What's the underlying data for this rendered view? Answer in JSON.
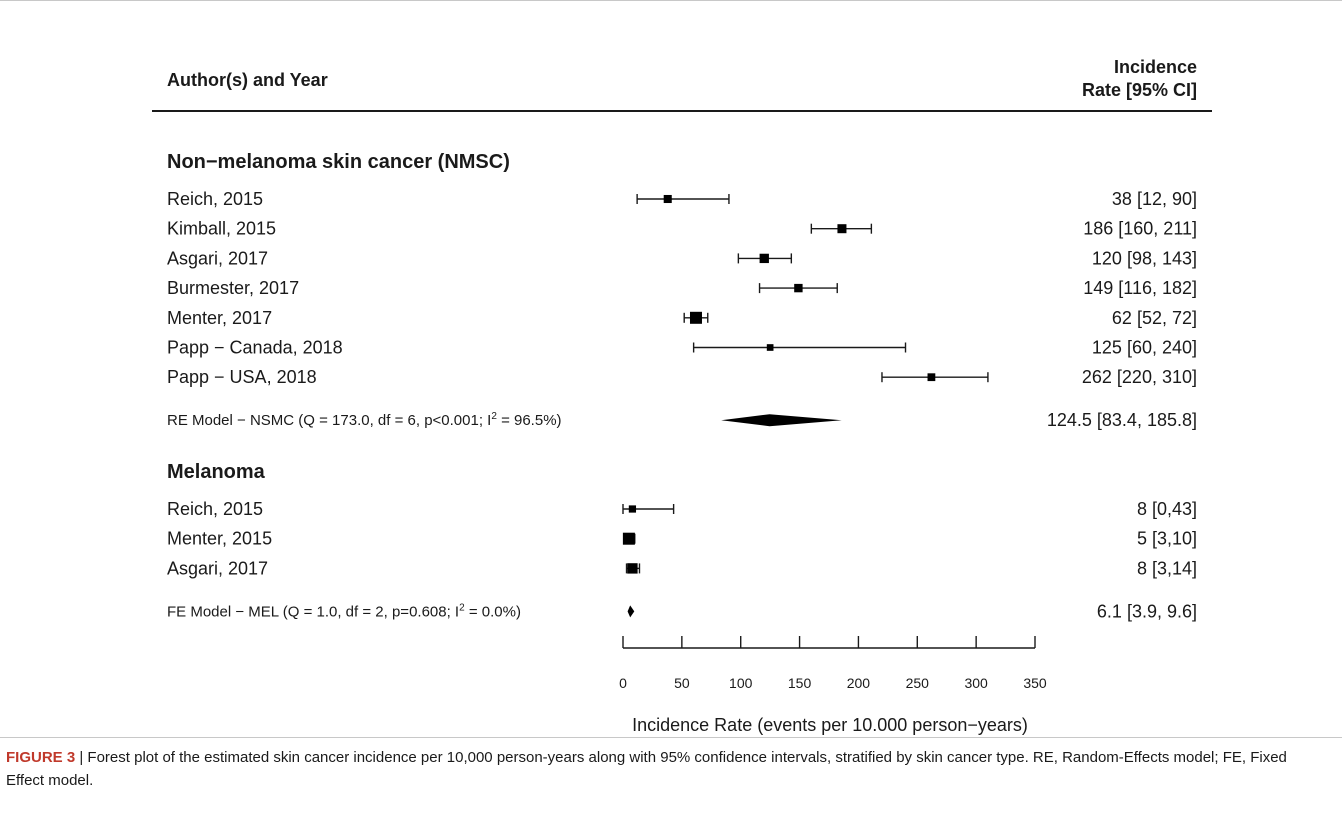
{
  "header": {
    "left": "Author(s) and Year",
    "right_line1": "Incidence",
    "right_line2": "Rate [95% CI]"
  },
  "chart_data": {
    "type": "forest",
    "xlabel": "Incidence Rate (events per 10.000 person−years)",
    "xlim": [
      0,
      350
    ],
    "ticks": [
      0,
      50,
      100,
      150,
      200,
      250,
      300,
      350
    ],
    "groups": [
      {
        "title": "Non−melanoma skin cancer (NMSC)",
        "studies": [
          {
            "label": "Reich, 2015",
            "estimate": 38,
            "lower": 12,
            "upper": 90,
            "ci_text": "38 [12,  90]"
          },
          {
            "label": "Kimball, 2015",
            "estimate": 186,
            "lower": 160,
            "upper": 211,
            "ci_text": "186 [160, 211]"
          },
          {
            "label": "Asgari, 2017",
            "estimate": 120,
            "lower": 98,
            "upper": 143,
            "ci_text": "120 [98, 143]"
          },
          {
            "label": "Burmester, 2017",
            "estimate": 149,
            "lower": 116,
            "upper": 182,
            "ci_text": "149 [116, 182]"
          },
          {
            "label": "Menter, 2017",
            "estimate": 62,
            "lower": 52,
            "upper": 72,
            "ci_text": "62 [52,  72]"
          },
          {
            "label": "Papp − Canada, 2018",
            "estimate": 125,
            "lower": 60,
            "upper": 240,
            "ci_text": "125 [60, 240]"
          },
          {
            "label": "Papp − USA, 2018",
            "estimate": 262,
            "lower": 220,
            "upper": 310,
            "ci_text": "262 [220, 310]"
          }
        ],
        "summary": {
          "label_main": "RE Model − NSMC (Q = 173.0, df = 6, p<0.001; I",
          "label_sup": "2",
          "label_tail": " = 96.5%)",
          "estimate": 124.5,
          "lower": 83.4,
          "upper": 185.8,
          "ci_text": "124.5 [83.4, 185.8]"
        }
      },
      {
        "title": "Melanoma",
        "studies": [
          {
            "label": "Reich, 2015",
            "estimate": 8,
            "lower": 0,
            "upper": 43,
            "ci_text": "8 [0,43]"
          },
          {
            "label": "Menter, 2015",
            "estimate": 5,
            "lower": 3,
            "upper": 10,
            "ci_text": "5 [3,10]"
          },
          {
            "label": "Asgari, 2017",
            "estimate": 8,
            "lower": 3,
            "upper": 14,
            "ci_text": "8 [3,14]"
          }
        ],
        "summary": {
          "label_main": "FE Model − MEL (Q = 1.0, df = 2, p=0.608; I",
          "label_sup": "2",
          "label_tail": " = 0.0%)",
          "estimate": 6.1,
          "lower": 3.9,
          "upper": 9.6,
          "ci_text": "6.1 [3.9, 9.6]"
        }
      }
    ]
  },
  "caption": {
    "label": "FIGURE 3",
    "separator": " | ",
    "text": "Forest plot of the estimated skin cancer incidence per 10,000 person-years along with 95% confidence intervals, stratified by skin cancer type. RE, Random-Effects model; FE, Fixed Effect model."
  }
}
